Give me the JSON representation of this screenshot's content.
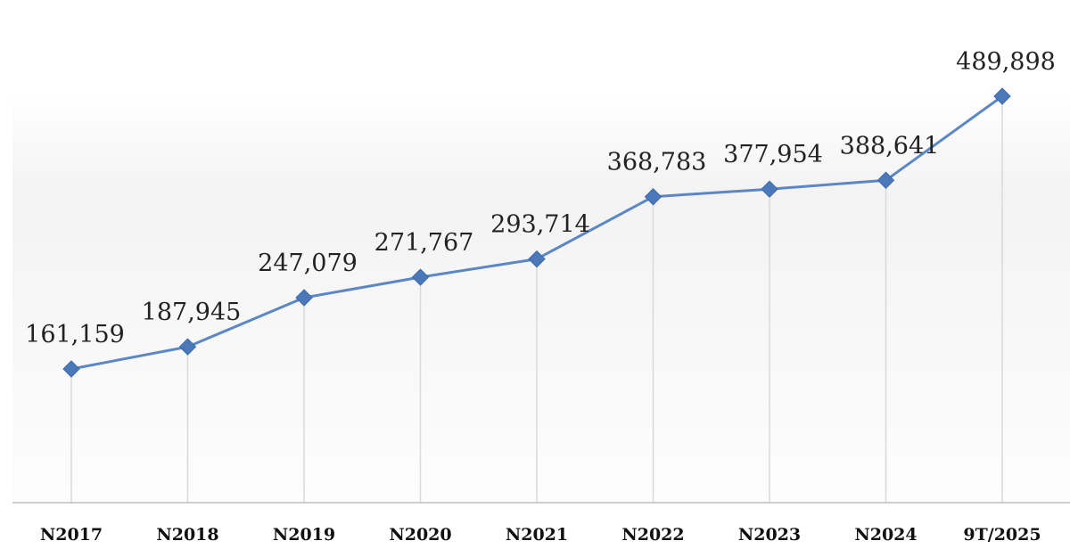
{
  "chart_data": {
    "type": "line",
    "title": "",
    "xlabel": "",
    "ylabel": "",
    "categories": [
      "N2017",
      "N2018",
      "N2019",
      "N2020",
      "N2021",
      "N2022",
      "N2023",
      "N2024",
      "9T/2025"
    ],
    "series": [
      {
        "values": [
          161159,
          187945,
          247079,
          271767,
          293714,
          368783,
          377954,
          388641,
          489898
        ],
        "labels": [
          "161,159",
          "187,945",
          "247,079",
          "271,767",
          "293,714",
          "368,783",
          "377,954",
          "388,641",
          "489,898"
        ]
      }
    ],
    "ylim": [
      0,
      520000
    ],
    "grid": false,
    "legend": "none",
    "drop_lines": true,
    "colors": {
      "line": "#5b87c4",
      "marker": "#4a78b8",
      "drop_line": "#d9d9d9",
      "axis": "#bfbfbf"
    }
  }
}
